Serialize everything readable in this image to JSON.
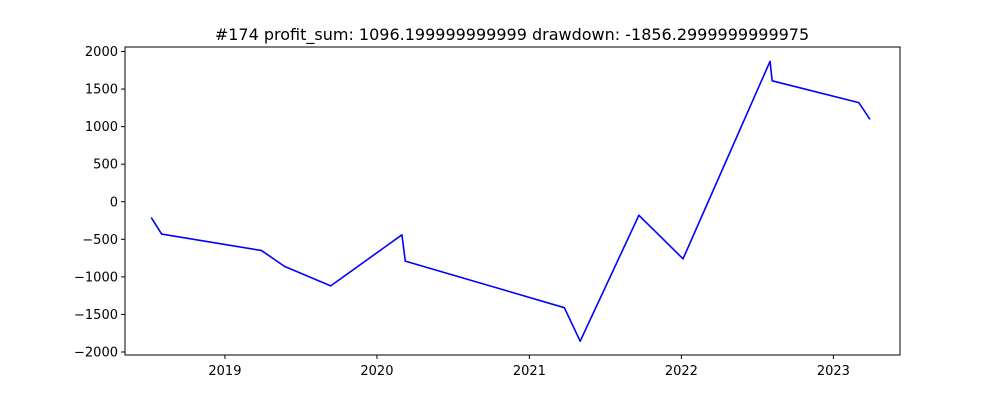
{
  "chart_data": {
    "type": "line",
    "title": "#174   profit_sum: 1096.199999999999 drawdown: -1856.2999999999975",
    "xlabel": "",
    "ylabel": "",
    "xlim": [
      "2018-05-06",
      "2023-06-10"
    ],
    "ylim": [
      -2040,
      2060
    ],
    "grid": false,
    "x_ticks": [
      "2019",
      "2020",
      "2021",
      "2022",
      "2023"
    ],
    "y_ticks": [
      2000,
      1500,
      1000,
      500,
      0,
      -500,
      -1000,
      -1500,
      -2000
    ],
    "y_tick_labels": [
      "2000",
      "1500",
      "1000",
      "500",
      "0",
      "−500",
      "−1000",
      "−1500",
      "−2000"
    ],
    "series": [
      {
        "color": "#0000ff",
        "x": [
          "2018-07-08",
          "2018-08-02",
          "2019-03-30",
          "2019-05-24",
          "2019-09-12",
          "2020-03-01",
          "2020-03-09",
          "2021-03-26",
          "2021-05-03",
          "2021-09-21",
          "2021-11-04",
          "2022-01-05",
          "2022-08-02",
          "2022-08-07",
          "2023-03-03",
          "2023-03-30"
        ],
        "y": [
          -210,
          -430,
          -650,
          -860,
          -1120,
          -440,
          -790,
          -1410,
          -1856,
          -180,
          -420,
          -760,
          1870,
          1610,
          1320,
          1096
        ]
      }
    ]
  }
}
